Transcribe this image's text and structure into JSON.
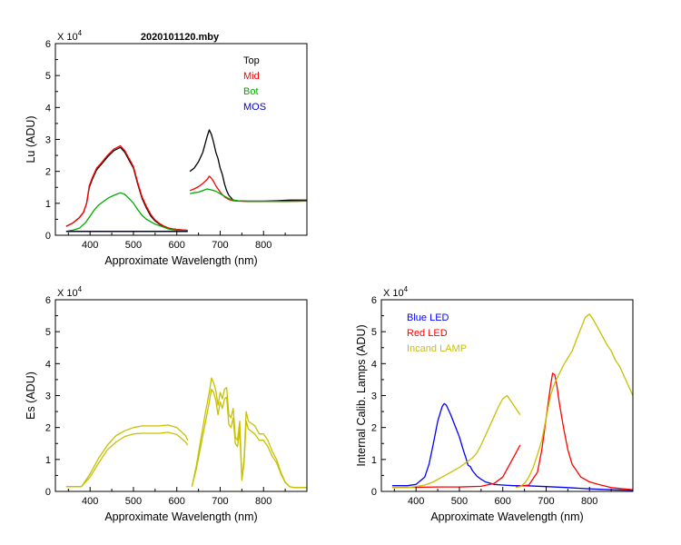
{
  "chart_data": [
    {
      "id": "lu",
      "type": "line",
      "title": "2020101120.mby",
      "xlabel": "Approximate Wavelength (nm)",
      "ylabel": "Lu (ADU)",
      "multiplier": "X 10",
      "exponent": "4",
      "xlim": [
        320,
        900
      ],
      "ylim": [
        0,
        6
      ],
      "xticks": [
        400,
        500,
        600,
        700,
        800
      ],
      "yticks": [
        0,
        1,
        2,
        3,
        4,
        5,
        6
      ],
      "legend_position": "top-right",
      "series": [
        {
          "name": "Top",
          "color": "#000000",
          "x": [
            345,
            360,
            375,
            385,
            392,
            398,
            405,
            415,
            425,
            440,
            455,
            470,
            480,
            490,
            500,
            510,
            520,
            530,
            540,
            550,
            560,
            570,
            580,
            590,
            600,
            610,
            620,
            625
          ],
          "y": [
            0.28,
            0.38,
            0.55,
            0.72,
            1.0,
            1.5,
            1.75,
            2.05,
            2.2,
            2.45,
            2.65,
            2.75,
            2.6,
            2.35,
            2.1,
            1.6,
            1.15,
            0.85,
            0.6,
            0.45,
            0.35,
            0.28,
            0.22,
            0.2,
            0.18,
            0.17,
            0.16,
            0.15
          ]
        },
        {
          "name": "Top",
          "color": "#000000",
          "x": [
            630,
            640,
            650,
            660,
            665,
            670,
            675,
            680,
            685,
            690,
            695,
            700,
            705,
            710,
            715,
            720,
            730,
            740,
            760,
            780,
            800,
            830,
            860,
            900
          ],
          "y": [
            2.0,
            2.1,
            2.3,
            2.6,
            2.85,
            3.1,
            3.3,
            3.15,
            2.9,
            2.6,
            2.4,
            2.1,
            1.9,
            1.6,
            1.4,
            1.25,
            1.1,
            1.08,
            1.07,
            1.07,
            1.07,
            1.08,
            1.1,
            1.1
          ]
        },
        {
          "name": "Mid",
          "color": "#ff0000",
          "x": [
            345,
            360,
            375,
            385,
            392,
            398,
            405,
            415,
            425,
            440,
            455,
            470,
            480,
            490,
            500,
            510,
            520,
            530,
            540,
            550,
            560,
            570,
            580,
            590,
            600,
            610,
            620,
            625
          ],
          "y": [
            0.28,
            0.38,
            0.55,
            0.72,
            1.0,
            1.55,
            1.8,
            2.1,
            2.25,
            2.5,
            2.7,
            2.8,
            2.65,
            2.4,
            2.15,
            1.65,
            1.2,
            0.9,
            0.65,
            0.48,
            0.37,
            0.29,
            0.23,
            0.2,
            0.18,
            0.17,
            0.16,
            0.15
          ]
        },
        {
          "name": "Mid",
          "color": "#ff0000",
          "x": [
            630,
            640,
            650,
            660,
            670,
            675,
            680,
            685,
            690,
            700,
            710,
            720,
            730,
            740,
            760,
            800,
            850,
            900
          ],
          "y": [
            1.4,
            1.45,
            1.52,
            1.62,
            1.75,
            1.85,
            1.78,
            1.68,
            1.55,
            1.35,
            1.2,
            1.12,
            1.08,
            1.07,
            1.06,
            1.06,
            1.06,
            1.07
          ]
        },
        {
          "name": "Bot",
          "color": "#00aa00",
          "x": [
            345,
            360,
            375,
            390,
            400,
            410,
            420,
            430,
            440,
            450,
            460,
            470,
            480,
            490,
            500,
            510,
            520,
            530,
            540,
            550,
            560,
            570,
            580,
            590,
            600,
            610,
            620,
            625
          ],
          "y": [
            0.12,
            0.16,
            0.22,
            0.4,
            0.6,
            0.8,
            0.95,
            1.05,
            1.15,
            1.22,
            1.28,
            1.33,
            1.28,
            1.15,
            1.0,
            0.8,
            0.62,
            0.5,
            0.42,
            0.35,
            0.3,
            0.25,
            0.2,
            0.17,
            0.16,
            0.15,
            0.15,
            0.14
          ]
        },
        {
          "name": "Bot",
          "color": "#00aa00",
          "x": [
            630,
            640,
            650,
            660,
            670,
            680,
            690,
            700,
            710,
            720,
            730,
            740,
            760,
            800,
            850,
            900
          ],
          "y": [
            1.3,
            1.33,
            1.35,
            1.4,
            1.45,
            1.42,
            1.38,
            1.3,
            1.22,
            1.15,
            1.1,
            1.08,
            1.06,
            1.06,
            1.06,
            1.07
          ]
        },
        {
          "name": "MOS",
          "color": "#0000cc",
          "x": [
            345,
            400,
            500,
            600,
            625
          ],
          "y": [
            0.12,
            0.12,
            0.12,
            0.12,
            0.12
          ]
        }
      ],
      "flat_line": {
        "color": "#000000",
        "x": [
          345,
          625
        ],
        "y": [
          0.12,
          0.12
        ]
      },
      "legend": [
        {
          "label": "Top",
          "color": "#000000"
        },
        {
          "label": "Mid",
          "color": "#ff0000"
        },
        {
          "label": "Bot",
          "color": "#00aa00"
        },
        {
          "label": "MOS",
          "color": "#0000cc"
        }
      ]
    },
    {
      "id": "es",
      "type": "line",
      "title": "",
      "xlabel": "Approximate Wavelength (nm)",
      "ylabel": "Es  (ADU)",
      "multiplier": "X 10",
      "exponent": "4",
      "xlim": [
        320,
        900
      ],
      "ylim": [
        0,
        6
      ],
      "xticks": [
        400,
        500,
        600,
        700,
        800
      ],
      "yticks": [
        0,
        1,
        2,
        3,
        4,
        5,
        6
      ],
      "series": [
        {
          "name": "Es upper",
          "color": "#c8c000",
          "x": [
            345,
            380,
            400,
            420,
            440,
            460,
            480,
            500,
            520,
            540,
            560,
            580,
            600,
            620,
            625
          ],
          "y": [
            0.15,
            0.15,
            0.55,
            1.05,
            1.45,
            1.75,
            1.9,
            2.0,
            2.05,
            2.05,
            2.05,
            2.08,
            2.0,
            1.75,
            1.6
          ]
        },
        {
          "name": "Es lower",
          "color": "#c8c000",
          "x": [
            345,
            380,
            400,
            420,
            440,
            460,
            480,
            500,
            520,
            540,
            560,
            580,
            600,
            620,
            625
          ],
          "y": [
            0.15,
            0.15,
            0.45,
            0.9,
            1.3,
            1.55,
            1.72,
            1.8,
            1.82,
            1.82,
            1.82,
            1.85,
            1.78,
            1.55,
            1.45
          ]
        },
        {
          "name": "Es upper",
          "color": "#c8c000",
          "x": [
            635,
            645,
            655,
            665,
            675,
            680,
            685,
            690,
            695,
            700,
            705,
            710,
            715,
            720,
            725,
            730,
            735,
            740,
            745,
            750,
            755,
            760,
            765,
            770,
            780,
            790,
            800,
            810,
            820,
            830,
            840,
            850,
            860,
            870,
            900
          ],
          "y": [
            0.15,
            0.8,
            1.6,
            2.4,
            3.1,
            3.55,
            3.4,
            3.15,
            2.7,
            3.1,
            2.9,
            3.2,
            3.25,
            2.4,
            2.3,
            2.6,
            1.7,
            1.6,
            2.2,
            0.4,
            1.0,
            2.5,
            2.2,
            2.15,
            2.05,
            1.8,
            1.8,
            1.6,
            1.25,
            1.0,
            0.6,
            0.3,
            0.15,
            0.12,
            0.12
          ]
        },
        {
          "name": "Es lower",
          "color": "#c8c000",
          "x": [
            635,
            645,
            655,
            665,
            675,
            680,
            685,
            690,
            695,
            700,
            705,
            710,
            715,
            720,
            725,
            730,
            735,
            740,
            745,
            750,
            755,
            760,
            765,
            770,
            780,
            790,
            800,
            810,
            820,
            830,
            840,
            850,
            860,
            870,
            900
          ],
          "y": [
            0.15,
            0.7,
            1.4,
            2.1,
            2.8,
            3.2,
            3.1,
            2.85,
            2.4,
            2.8,
            2.6,
            2.9,
            2.95,
            2.1,
            2.0,
            2.3,
            1.5,
            1.4,
            1.9,
            0.35,
            0.9,
            2.2,
            1.95,
            1.9,
            1.8,
            1.6,
            1.6,
            1.4,
            1.1,
            0.9,
            0.55,
            0.28,
            0.15,
            0.12,
            0.12
          ]
        }
      ]
    },
    {
      "id": "lamps",
      "type": "line",
      "title": "",
      "xlabel": "Approximate Wavelength (nm)",
      "ylabel": "Internal Calib. Lamps  (ADU)",
      "multiplier": "X 10",
      "exponent": "4",
      "xlim": [
        320,
        900
      ],
      "ylim": [
        0,
        6
      ],
      "xticks": [
        400,
        500,
        600,
        700,
        800
      ],
      "yticks": [
        0,
        1,
        2,
        3,
        4,
        5,
        6
      ],
      "legend_position": "top-left",
      "series": [
        {
          "name": "Blue LED",
          "color": "#0000ff",
          "x": [
            345,
            380,
            400,
            420,
            430,
            440,
            450,
            460,
            465,
            470,
            480,
            490,
            500,
            510,
            515,
            520,
            525,
            530,
            540,
            550,
            560,
            580,
            600,
            625,
            650,
            700,
            750,
            800,
            850,
            900
          ],
          "y": [
            0.18,
            0.18,
            0.22,
            0.45,
            0.85,
            1.5,
            2.2,
            2.65,
            2.75,
            2.7,
            2.4,
            2.05,
            1.7,
            1.25,
            1.05,
            0.82,
            0.78,
            0.65,
            0.48,
            0.38,
            0.3,
            0.22,
            0.2,
            0.18,
            0.18,
            0.15,
            0.12,
            0.08,
            0.05,
            0.03
          ]
        },
        {
          "name": "Red LED",
          "color": "#ff0000",
          "x": [
            345,
            450,
            500,
            550,
            580,
            600,
            620,
            630,
            640
          ],
          "y": [
            0.12,
            0.14,
            0.14,
            0.16,
            0.25,
            0.45,
            0.95,
            1.2,
            1.45
          ]
        },
        {
          "name": "Red LED",
          "color": "#ff0000",
          "x": [
            630,
            660,
            680,
            690,
            700,
            710,
            715,
            720,
            725,
            730,
            740,
            750,
            760,
            780,
            800,
            820,
            850,
            900
          ],
          "y": [
            0.15,
            0.2,
            0.6,
            1.3,
            2.3,
            3.3,
            3.7,
            3.65,
            3.3,
            2.8,
            2.0,
            1.3,
            0.85,
            0.45,
            0.3,
            0.22,
            0.12,
            0.05
          ]
        },
        {
          "name": "Incand LAMP",
          "color": "#c8c000",
          "x": [
            345,
            380,
            400,
            420,
            440,
            460,
            480,
            500,
            510,
            520,
            530,
            540,
            550,
            560,
            570,
            580,
            590,
            600,
            610,
            620,
            630,
            640
          ],
          "y": [
            0.12,
            0.12,
            0.15,
            0.2,
            0.3,
            0.45,
            0.6,
            0.75,
            0.85,
            0.95,
            1.05,
            1.2,
            1.45,
            1.75,
            2.05,
            2.35,
            2.65,
            2.9,
            3.0,
            2.8,
            2.6,
            2.4
          ]
        },
        {
          "name": "Incand LAMP",
          "color": "#c8c000",
          "x": [
            630,
            640,
            650,
            660,
            670,
            680,
            690,
            700,
            710,
            720,
            740,
            760,
            780,
            790,
            800,
            810,
            820,
            830,
            840,
            850,
            860,
            870,
            880,
            890,
            900
          ],
          "y": [
            0.12,
            0.15,
            0.25,
            0.45,
            0.75,
            1.15,
            1.6,
            2.3,
            3.0,
            3.4,
            3.95,
            4.4,
            5.1,
            5.45,
            5.55,
            5.35,
            5.1,
            4.85,
            4.6,
            4.4,
            4.1,
            3.9,
            3.6,
            3.3,
            3.0
          ]
        }
      ],
      "legend": [
        {
          "label": "Blue LED",
          "color": "#0000ff"
        },
        {
          "label": "Red LED",
          "color": "#ff0000"
        },
        {
          "label": "Incand LAMP",
          "color": "#c8c000"
        }
      ]
    }
  ]
}
